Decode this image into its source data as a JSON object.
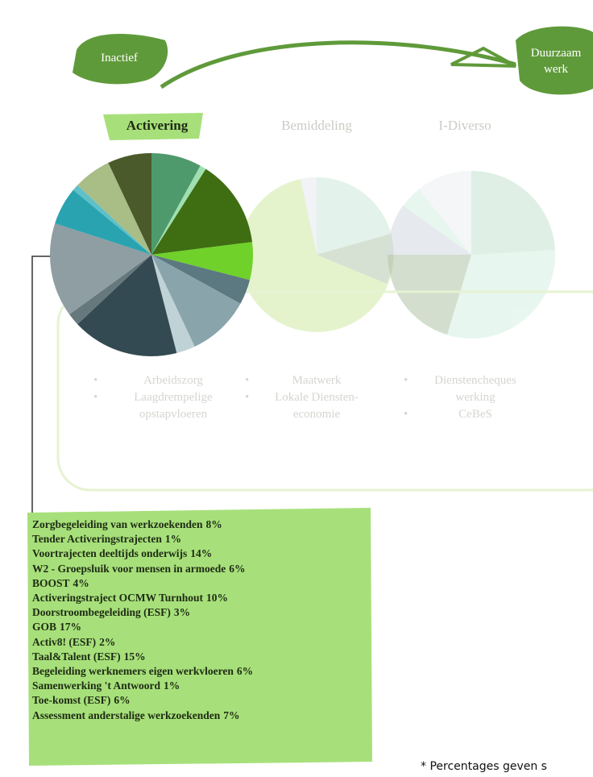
{
  "header": {
    "start": "Inactief",
    "end_line1": "Duurzaam",
    "end_line2": "werk"
  },
  "phases": [
    "Activering",
    "Bemiddeling",
    "I-Diverso"
  ],
  "bullets": [
    [
      "Arbeidszorg",
      "Laagdrempelige opstapvloeren"
    ],
    [
      "Maatwerk",
      "Lokale Diensten-economie"
    ],
    [
      "Dienstencheques werking",
      "CeBeS"
    ]
  ],
  "chart_data": {
    "type": "pie",
    "categories": [
      "Zorgbegeleiding van werkzoekenden",
      "Tender Activeringstrajecten",
      "Voortrajecten deeltijds onderwijs",
      "W2 - Groepsluik voor mensen in armoede",
      "BOOST",
      "Activeringstraject OCMW Turnhout",
      "Doorstroombegeleiding (ESF)",
      "GOB",
      "Activ8! (ESF)",
      "Taal&Talent (ESF)",
      "Begeleiding werknemers eigen werkvloeren",
      "Samenwerking 't Antwoord",
      "Toe-komst (ESF)",
      "Assessment anderstalige werkzoekenden"
    ],
    "values": [
      8,
      1,
      14,
      6,
      4,
      10,
      3,
      17,
      2,
      15,
      6,
      1,
      6,
      7
    ],
    "value_labels": [
      "8%",
      "1%",
      "14%",
      "6%",
      "4%",
      "10%",
      "3%",
      "17%",
      "2%",
      "15%",
      "6%",
      "1%",
      "6%",
      "7%"
    ],
    "colors": [
      "#4f9a6c",
      "#9fe0b0",
      "#3f6e12",
      "#6fd12a",
      "#5c7880",
      "#8aa4ab",
      "#bfd2d6",
      "#344a52",
      "#66787c",
      "#8e9ea2",
      "#2aa3b0",
      "#5ec0c8",
      "#a9bd86",
      "#4a5a2a"
    ]
  },
  "footnote": "* Percentages geven s"
}
